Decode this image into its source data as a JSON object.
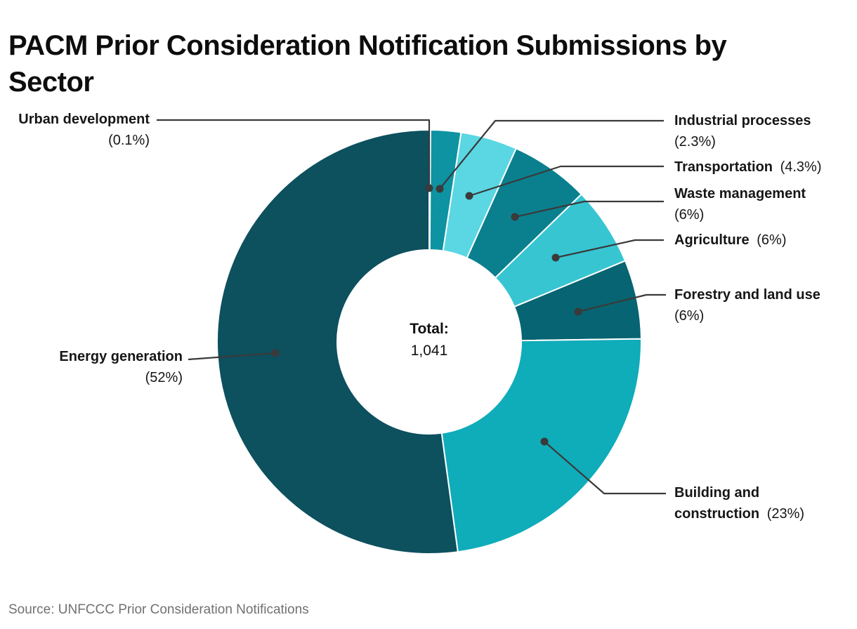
{
  "title": "PACM Prior Consideration Notification Submissions by Sector",
  "source": "Source: UNFCCC Prior Consideration Notifications",
  "center": {
    "total_label": "Total:",
    "total_value": "1,041"
  },
  "chart_data": {
    "type": "pie",
    "subtype": "donut",
    "title": "PACM Prior Consideration Notification Submissions by Sector",
    "total_label": "Total:",
    "total_value": "1,041",
    "source": "Source: UNFCCC Prior Consideration Notifications",
    "legend_position": "callout-labels",
    "start_angle_deg": 0,
    "direction": "clockwise",
    "sectors": [
      {
        "id": "urban-development",
        "label": "Urban development",
        "pct_display": "(0.1%)",
        "value_pct": 0.1,
        "color": "#0B6E7D"
      },
      {
        "id": "industrial-processes",
        "label": "Industrial processes",
        "pct_display": "(2.3%)",
        "value_pct": 2.3,
        "color": "#0D93A2"
      },
      {
        "id": "transportation",
        "label": "Transportation",
        "pct_display": "(4.3%)",
        "value_pct": 4.3,
        "color": "#5AD7E2"
      },
      {
        "id": "waste-management",
        "label": "Waste management",
        "pct_display": "(6%)",
        "value_pct": 6,
        "color": "#0A808F"
      },
      {
        "id": "agriculture",
        "label": "Agriculture",
        "pct_display": "(6%)",
        "value_pct": 6,
        "color": "#37C5D2"
      },
      {
        "id": "forestry-and-land-use",
        "label": "Forestry and land use",
        "pct_display": "(6%)",
        "value_pct": 6,
        "color": "#076472"
      },
      {
        "id": "building-and-construction",
        "label": "Building and construction",
        "pct_display": "(23%)",
        "value_pct": 23,
        "color": "#0FACBA"
      },
      {
        "id": "energy-generation",
        "label": "Energy generation",
        "pct_display": "(52%)",
        "value_pct": 52,
        "color": "#0D505E"
      }
    ],
    "colors": {
      "leader_line": "#3A3A3A",
      "slice_gap": "#FFFFFF"
    }
  }
}
